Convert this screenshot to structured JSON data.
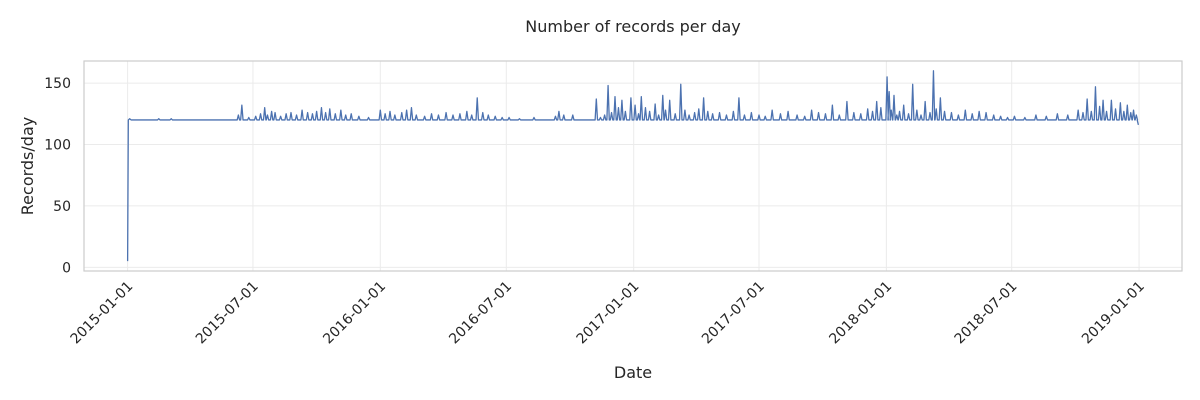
{
  "chart_data": {
    "type": "line",
    "title": "Number of records per day",
    "xlabel": "Date",
    "ylabel": "Records/day",
    "x_range": [
      "2014-10-30",
      "2019-03-04"
    ],
    "ylim": [
      -3,
      168
    ],
    "grid": true,
    "x_ticks": [
      "2015-01-01",
      "2015-07-01",
      "2016-01-01",
      "2016-07-01",
      "2017-01-01",
      "2017-07-01",
      "2018-01-01",
      "2018-07-01",
      "2019-01-01"
    ],
    "y_ticks": [
      0,
      50,
      100,
      150
    ],
    "line_color": "#4c72b0",
    "series": [
      {
        "baseline": 120,
        "points": [
          [
            "2015-01-01",
            5
          ],
          [
            "2015-01-02",
            120
          ],
          [
            "2015-01-04",
            121
          ],
          [
            "2015-01-06",
            120
          ],
          [
            "2015-02-15",
            121
          ],
          [
            "2015-03-05",
            121
          ],
          [
            "2015-06-10",
            124
          ],
          [
            "2015-06-15",
            132
          ],
          [
            "2015-06-25",
            122
          ],
          [
            "2015-07-05",
            123
          ],
          [
            "2015-07-12",
            125
          ],
          [
            "2015-07-18",
            130
          ],
          [
            "2015-07-22",
            124
          ],
          [
            "2015-07-28",
            127
          ],
          [
            "2015-08-02",
            126
          ],
          [
            "2015-08-10",
            123
          ],
          [
            "2015-08-18",
            125
          ],
          [
            "2015-08-25",
            126
          ],
          [
            "2015-09-02",
            124
          ],
          [
            "2015-09-10",
            128
          ],
          [
            "2015-09-18",
            126
          ],
          [
            "2015-09-25",
            125
          ],
          [
            "2015-10-01",
            127
          ],
          [
            "2015-10-08",
            130
          ],
          [
            "2015-10-14",
            126
          ],
          [
            "2015-10-20",
            129
          ],
          [
            "2015-10-28",
            125
          ],
          [
            "2015-11-05",
            128
          ],
          [
            "2015-11-12",
            124
          ],
          [
            "2015-11-20",
            125
          ],
          [
            "2015-12-01",
            123
          ],
          [
            "2015-12-15",
            122
          ],
          [
            "2016-01-01",
            128
          ],
          [
            "2016-01-08",
            125
          ],
          [
            "2016-01-15",
            127
          ],
          [
            "2016-01-22",
            124
          ],
          [
            "2016-02-01",
            126
          ],
          [
            "2016-02-08",
            128
          ],
          [
            "2016-02-15",
            130
          ],
          [
            "2016-02-22",
            124
          ],
          [
            "2016-03-05",
            123
          ],
          [
            "2016-03-15",
            125
          ],
          [
            "2016-03-25",
            124
          ],
          [
            "2016-04-05",
            126
          ],
          [
            "2016-04-15",
            124
          ],
          [
            "2016-04-25",
            125
          ],
          [
            "2016-05-05",
            127
          ],
          [
            "2016-05-12",
            124
          ],
          [
            "2016-05-20",
            138
          ],
          [
            "2016-05-28",
            126
          ],
          [
            "2016-06-05",
            124
          ],
          [
            "2016-06-15",
            123
          ],
          [
            "2016-06-25",
            122
          ],
          [
            "2016-07-05",
            122
          ],
          [
            "2016-07-20",
            121
          ],
          [
            "2016-08-10",
            122
          ],
          [
            "2016-09-10",
            123
          ],
          [
            "2016-09-15",
            127
          ],
          [
            "2016-09-22",
            124
          ],
          [
            "2016-10-05",
            124
          ],
          [
            "2016-11-08",
            137
          ],
          [
            "2016-11-14",
            122
          ],
          [
            "2016-11-20",
            124
          ],
          [
            "2016-11-25",
            148
          ],
          [
            "2016-11-30",
            126
          ],
          [
            "2016-12-05",
            139
          ],
          [
            "2016-12-10",
            130
          ],
          [
            "2016-12-15",
            136
          ],
          [
            "2016-12-20",
            127
          ],
          [
            "2016-12-28",
            138
          ],
          [
            "2017-01-03",
            132
          ],
          [
            "2017-01-08",
            125
          ],
          [
            "2017-01-12",
            139
          ],
          [
            "2017-01-18",
            130
          ],
          [
            "2017-01-24",
            127
          ],
          [
            "2017-02-01",
            133
          ],
          [
            "2017-02-06",
            124
          ],
          [
            "2017-02-12",
            140
          ],
          [
            "2017-02-16",
            128
          ],
          [
            "2017-02-22",
            136
          ],
          [
            "2017-03-02",
            125
          ],
          [
            "2017-03-10",
            149
          ],
          [
            "2017-03-16",
            128
          ],
          [
            "2017-03-22",
            124
          ],
          [
            "2017-03-30",
            126
          ],
          [
            "2017-04-05",
            129
          ],
          [
            "2017-04-12",
            138
          ],
          [
            "2017-04-18",
            127
          ],
          [
            "2017-04-25",
            125
          ],
          [
            "2017-05-05",
            126
          ],
          [
            "2017-05-15",
            124
          ],
          [
            "2017-05-25",
            127
          ],
          [
            "2017-06-02",
            138
          ],
          [
            "2017-06-10",
            124
          ],
          [
            "2017-06-20",
            126
          ],
          [
            "2017-07-01",
            124
          ],
          [
            "2017-07-10",
            123
          ],
          [
            "2017-07-20",
            128
          ],
          [
            "2017-08-01",
            125
          ],
          [
            "2017-08-12",
            127
          ],
          [
            "2017-08-25",
            124
          ],
          [
            "2017-09-05",
            123
          ],
          [
            "2017-09-15",
            128
          ],
          [
            "2017-09-25",
            126
          ],
          [
            "2017-10-05",
            125
          ],
          [
            "2017-10-15",
            132
          ],
          [
            "2017-10-25",
            124
          ],
          [
            "2017-11-05",
            135
          ],
          [
            "2017-11-15",
            126
          ],
          [
            "2017-11-25",
            125
          ],
          [
            "2017-12-05",
            129
          ],
          [
            "2017-12-12",
            127
          ],
          [
            "2017-12-18",
            135
          ],
          [
            "2017-12-24",
            130
          ],
          [
            "2018-01-02",
            155
          ],
          [
            "2018-01-05",
            143
          ],
          [
            "2018-01-08",
            128
          ],
          [
            "2018-01-12",
            140
          ],
          [
            "2018-01-16",
            124
          ],
          [
            "2018-01-20",
            127
          ],
          [
            "2018-01-26",
            132
          ],
          [
            "2018-02-02",
            125
          ],
          [
            "2018-02-08",
            149
          ],
          [
            "2018-02-14",
            128
          ],
          [
            "2018-02-20",
            124
          ],
          [
            "2018-02-26",
            135
          ],
          [
            "2018-03-05",
            126
          ],
          [
            "2018-03-10",
            160
          ],
          [
            "2018-03-14",
            129
          ],
          [
            "2018-03-20",
            138
          ],
          [
            "2018-03-26",
            127
          ],
          [
            "2018-04-05",
            126
          ],
          [
            "2018-04-15",
            124
          ],
          [
            "2018-04-25",
            128
          ],
          [
            "2018-05-05",
            125
          ],
          [
            "2018-05-15",
            127
          ],
          [
            "2018-05-25",
            126
          ],
          [
            "2018-06-05",
            124
          ],
          [
            "2018-06-15",
            123
          ],
          [
            "2018-06-25",
            122
          ],
          [
            "2018-07-05",
            123
          ],
          [
            "2018-07-20",
            122
          ],
          [
            "2018-08-05",
            124
          ],
          [
            "2018-08-20",
            123
          ],
          [
            "2018-09-05",
            125
          ],
          [
            "2018-09-20",
            124
          ],
          [
            "2018-10-05",
            128
          ],
          [
            "2018-10-12",
            126
          ],
          [
            "2018-10-18",
            137
          ],
          [
            "2018-10-24",
            127
          ],
          [
            "2018-10-30",
            147
          ],
          [
            "2018-11-05",
            131
          ],
          [
            "2018-11-10",
            136
          ],
          [
            "2018-11-15",
            127
          ],
          [
            "2018-11-22",
            136
          ],
          [
            "2018-11-28",
            129
          ],
          [
            "2018-12-05",
            134
          ],
          [
            "2018-12-10",
            127
          ],
          [
            "2018-12-15",
            132
          ],
          [
            "2018-12-20",
            126
          ],
          [
            "2018-12-24",
            128
          ],
          [
            "2018-12-28",
            124
          ],
          [
            "2018-12-31",
            116
          ]
        ]
      }
    ]
  }
}
